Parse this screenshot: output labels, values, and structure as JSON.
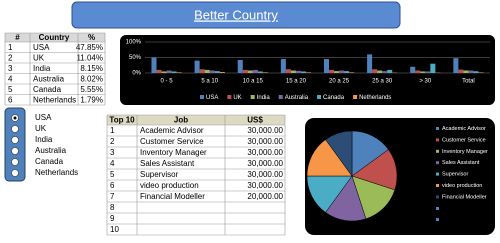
{
  "title": "Better Country",
  "country_table": {
    "headers": [
      "#",
      "Country",
      "%"
    ],
    "rows": [
      [
        "1",
        "USA",
        "47.85%"
      ],
      [
        "2",
        "UK",
        "11.04%"
      ],
      [
        "3",
        "India",
        "8.15%"
      ],
      [
        "4",
        "Australia",
        "8.02%"
      ],
      [
        "5",
        "Canada",
        "5.55%"
      ],
      [
        "6",
        "Netherlands",
        "1.79%"
      ]
    ]
  },
  "radio_options": [
    "USA",
    "UK",
    "India",
    "Australia",
    "Canada",
    "Netherlands"
  ],
  "jobs_table": {
    "headers": [
      "Top 10",
      "Job",
      "US$"
    ],
    "rows": [
      [
        "1",
        "Academic Advisor",
        "30,000.00"
      ],
      [
        "2",
        "Customer Service",
        "30,000.00"
      ],
      [
        "3",
        "Inventory Manager",
        "30,000.00"
      ],
      [
        "4",
        "Sales Assistant",
        "30,000.00"
      ],
      [
        "5",
        "Supervisor",
        "30,000.00"
      ],
      [
        "6",
        "video production",
        "30,000.00"
      ],
      [
        "7",
        "Financial Modeller",
        "20,000.00"
      ],
      [
        "8"
      ],
      [
        "9"
      ],
      [
        "10"
      ]
    ]
  },
  "chart_data": [
    {
      "type": "bar",
      "categories": [
        "0 - 5",
        "5 a 10",
        "10 a 15",
        "15 a 20",
        "20 a 25",
        "25 a 30",
        "> 30",
        "Total"
      ],
      "series": [
        {
          "name": "USA",
          "color": "#4f81bd",
          "values": [
            50,
            40,
            42,
            45,
            45,
            60,
            20,
            47.85
          ]
        },
        {
          "name": "UK",
          "color": "#c0504d",
          "values": [
            10,
            12,
            10,
            12,
            10,
            12,
            8,
            11.04
          ]
        },
        {
          "name": "India",
          "color": "#9bbb59",
          "values": [
            5,
            10,
            8,
            8,
            6,
            8,
            5,
            8.15
          ]
        },
        {
          "name": "Australia",
          "color": "#8064a2",
          "values": [
            8,
            8,
            10,
            7,
            8,
            6,
            5,
            8.02
          ]
        },
        {
          "name": "Canada",
          "color": "#4bacc6",
          "values": [
            5,
            6,
            5,
            5,
            6,
            10,
            30,
            5.55
          ]
        },
        {
          "name": "Netherlands",
          "color": "#f79646",
          "values": [
            2,
            3,
            2,
            2,
            2,
            1,
            1,
            1.79
          ]
        }
      ],
      "ylim": [
        0,
        100
      ],
      "yticks": [
        {
          "value": 0,
          "label": "0%"
        },
        {
          "value": 50,
          "label": "50%"
        },
        {
          "value": 100,
          "label": "100%"
        }
      ],
      "grid": true,
      "legend": "bottom"
    },
    {
      "type": "pie",
      "categories": [
        "Academic Advisor",
        "Customer Service",
        "Inventory Manager",
        "Sales Assistant",
        "Supervisor",
        "video production",
        "Financial Modeller"
      ],
      "values": [
        30000,
        30000,
        30000,
        30000,
        30000,
        30000,
        20000
      ],
      "colors": [
        "#4f81bd",
        "#c0504d",
        "#9bbb59",
        "#8064a2",
        "#4bacc6",
        "#f79646",
        "#2c4d75"
      ],
      "legend": "right"
    }
  ]
}
